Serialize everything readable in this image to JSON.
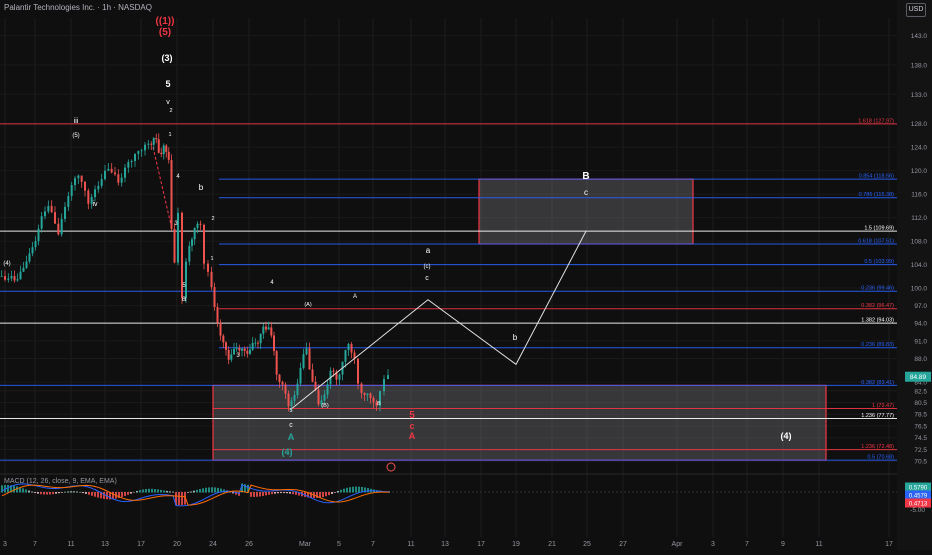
{
  "header": {
    "title": "Palantir Technologies Inc. · 1h · NASDAQ",
    "currency_button": "USD"
  },
  "chart_data": {
    "type": "candlestick",
    "price_axis": {
      "range": [
        69.0,
        146.0
      ],
      "ticks": [
        143,
        138,
        133,
        128,
        124,
        120,
        116,
        112,
        108,
        104,
        100,
        97,
        94,
        91,
        88,
        84,
        82.5,
        80.5,
        78.5,
        76.5,
        74.5,
        72.5,
        70.5
      ]
    },
    "time_axis": {
      "labels": [
        "3",
        "7",
        "11",
        "13",
        "17",
        "20",
        "24",
        "26",
        "Mar",
        "5",
        "7",
        "11",
        "13",
        "17",
        "19",
        "21",
        "25",
        "27",
        "Apr",
        "3",
        "7",
        "9",
        "11",
        "17"
      ]
    },
    "last_price": "84.89",
    "price_path": [
      [
        0,
        102
      ],
      [
        10,
        101
      ],
      [
        25,
        103
      ],
      [
        40,
        110
      ],
      [
        50,
        114
      ],
      [
        60,
        110
      ],
      [
        70,
        116
      ],
      [
        80,
        119
      ],
      [
        90,
        115
      ],
      [
        100,
        118
      ],
      [
        110,
        120
      ],
      [
        120,
        118
      ],
      [
        130,
        122
      ],
      [
        140,
        123
      ],
      [
        150,
        124
      ],
      [
        155,
        126
      ],
      [
        160,
        123
      ],
      [
        165,
        124
      ],
      [
        170,
        122
      ],
      [
        173,
        110
      ],
      [
        176,
        104
      ],
      [
        180,
        112
      ],
      [
        184,
        98
      ],
      [
        188,
        104
      ],
      [
        196,
        111
      ],
      [
        202,
        110
      ],
      [
        206,
        104
      ],
      [
        210,
        102
      ],
      [
        216,
        97
      ],
      [
        222,
        92
      ],
      [
        230,
        88
      ],
      [
        238,
        90
      ],
      [
        246,
        89
      ],
      [
        254,
        90
      ],
      [
        262,
        92
      ],
      [
        270,
        94
      ],
      [
        278,
        86
      ],
      [
        284,
        83
      ],
      [
        290,
        80
      ],
      [
        296,
        82
      ],
      [
        302,
        86
      ],
      [
        308,
        90
      ],
      [
        314,
        84
      ],
      [
        320,
        80
      ],
      [
        326,
        82
      ],
      [
        332,
        86
      ],
      [
        338,
        84
      ],
      [
        344,
        88
      ],
      [
        350,
        90
      ],
      [
        356,
        88
      ],
      [
        360,
        84
      ],
      [
        366,
        82
      ],
      [
        372,
        81
      ],
      [
        378,
        80
      ],
      [
        382,
        83
      ],
      [
        386,
        85
      ],
      [
        390,
        84.89
      ]
    ],
    "levels": [
      {
        "label": "1.618 (127.97)",
        "value": 127.97,
        "color": "#f23645"
      },
      {
        "label": "0.854 (118.56)",
        "value": 118.56,
        "color": "#2962ff"
      },
      {
        "label": "0.786 (115.38)",
        "value": 115.38,
        "color": "#2962ff"
      },
      {
        "label": "1.5 (109.69)",
        "value": 109.69,
        "color": "#ffffff"
      },
      {
        "label": "0.618 (107.51)",
        "value": 107.51,
        "color": "#2962ff"
      },
      {
        "label": "0.5 (103.99)",
        "value": 103.99,
        "color": "#2962ff"
      },
      {
        "label": "0.236 (99.46)",
        "value": 99.46,
        "color": "#2962ff"
      },
      {
        "label": "0.382 (96.47)",
        "value": 96.47,
        "color": "#f23645"
      },
      {
        "label": "1.382 (94.03)",
        "value": 94.03,
        "color": "#ffffff"
      },
      {
        "label": "0.236 (89.83)",
        "value": 89.83,
        "color": "#2962ff"
      },
      {
        "label": "0.382 (83.41)",
        "value": 83.41,
        "color": "#2962ff"
      },
      {
        "label": "1 (79.47)",
        "value": 79.47,
        "color": "#f23645"
      },
      {
        "label": "1.236 (77.77)",
        "value": 77.77,
        "color": "#ffffff"
      },
      {
        "label": "1.236 (72.48)",
        "value": 72.48,
        "color": "#f23645"
      },
      {
        "label": "0.5 (70.68)",
        "value": 70.68,
        "color": "#2962ff"
      }
    ],
    "zones": [
      {
        "name": "B-zone",
        "from": 107.51,
        "to": 118.56,
        "color": "#f23645"
      },
      {
        "name": "A-zone",
        "from": 70.68,
        "to": 83.41,
        "color": "#f23645"
      }
    ],
    "projection": [
      [
        292,
        79.5
      ],
      [
        428,
        98
      ],
      [
        516,
        87
      ],
      [
        586,
        109.69
      ]
    ],
    "wave_labels": [
      {
        "text": "((1))",
        "color": "#f23645"
      },
      {
        "text": "(5)",
        "color": "#f23645"
      },
      {
        "text": "(3)",
        "color": "#ffffff"
      },
      {
        "text": "5",
        "color": "#ffffff"
      },
      {
        "text": "v",
        "color": "#ffffff"
      },
      {
        "text": "iii",
        "color": "#ffffff"
      },
      {
        "text": "(5)",
        "color": "#ffffff"
      },
      {
        "text": "iv",
        "color": "#ffffff"
      },
      {
        "text": "(4)",
        "color": "#ffffff"
      },
      {
        "text": "2",
        "color": "#ffffff"
      },
      {
        "text": "1",
        "color": "#ffffff"
      },
      {
        "text": "4",
        "color": "#ffffff"
      },
      {
        "text": "b",
        "color": "#ffffff"
      },
      {
        "text": "3",
        "color": "#ffffff"
      },
      {
        "text": "2",
        "color": "#ffffff"
      },
      {
        "text": "1",
        "color": "#ffffff"
      },
      {
        "text": "5",
        "color": "#ffffff"
      },
      {
        "text": "a",
        "color": "#ffffff"
      },
      {
        "text": "4",
        "color": "#ffffff"
      },
      {
        "text": "3",
        "color": "#ffffff"
      },
      {
        "text": "(A)",
        "color": "#ffffff"
      },
      {
        "text": "A",
        "color": "#ffffff"
      },
      {
        "text": "5",
        "color": "#ffffff"
      },
      {
        "text": "c",
        "color": "#ffffff"
      },
      {
        "text": "A",
        "color": "#26a69a"
      },
      {
        "text": "(4)",
        "color": "#26a69a"
      },
      {
        "text": "(B)",
        "color": "#ffffff"
      },
      {
        "text": "B",
        "color": "#ffffff"
      },
      {
        "text": "5",
        "color": "#f23645"
      },
      {
        "text": "c",
        "color": "#f23645"
      },
      {
        "text": "A",
        "color": "#f23645"
      },
      {
        "text": "a",
        "color": "#ffffff"
      },
      {
        "text": "(c)",
        "color": "#ffffff"
      },
      {
        "text": "c",
        "color": "#ffffff"
      },
      {
        "text": "b",
        "color": "#ffffff"
      },
      {
        "text": "B",
        "color": "#ffffff"
      },
      {
        "text": "c",
        "color": "#ffffff"
      },
      {
        "text": "(4)",
        "color": "#ffffff"
      }
    ],
    "macd": {
      "legend": "MACD (12, 26, close, 9, EMA, EMA)",
      "axis_ticks": [
        "0.00",
        "-5.00"
      ],
      "values": [
        "0.5790",
        "0.4579",
        "0.4713"
      ]
    }
  }
}
